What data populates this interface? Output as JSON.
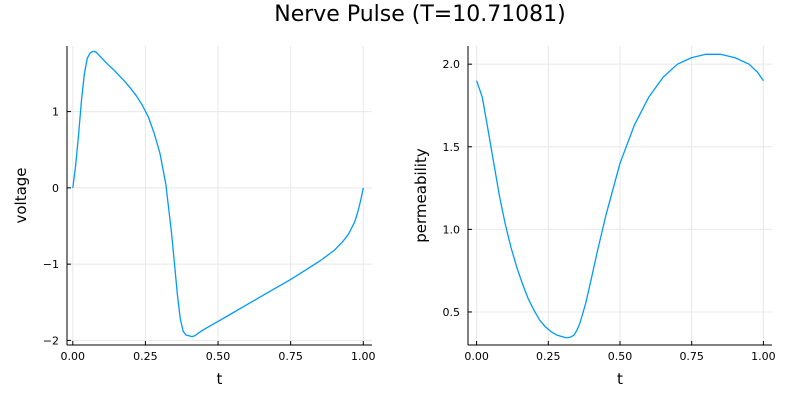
{
  "title": "Nerve Pulse (T=10.71081)",
  "chart_data": [
    {
      "type": "line",
      "xlabel": "t",
      "ylabel": "voltage",
      "xlim": [
        -0.02,
        1.03
      ],
      "ylim": [
        -2.06,
        1.86
      ],
      "xticks": [
        0.0,
        0.25,
        0.5,
        0.75,
        1.0
      ],
      "xtick_labels": [
        "0.00",
        "0.25",
        "0.50",
        "0.75",
        "1.00"
      ],
      "yticks": [
        -2,
        -1,
        0,
        1
      ],
      "ytick_labels": [
        "−2",
        "−1",
        "0",
        "1"
      ],
      "grid": true,
      "legend": "none",
      "series": [
        {
          "color": "#009AFA",
          "x": [
            0.0,
            0.01,
            0.02,
            0.03,
            0.04,
            0.05,
            0.06,
            0.07,
            0.08,
            0.09,
            0.1,
            0.12,
            0.14,
            0.16,
            0.18,
            0.2,
            0.22,
            0.24,
            0.26,
            0.28,
            0.3,
            0.32,
            0.34,
            0.35,
            0.36,
            0.37,
            0.38,
            0.39,
            0.4,
            0.41,
            0.42,
            0.43,
            0.45,
            0.5,
            0.55,
            0.6,
            0.65,
            0.7,
            0.75,
            0.8,
            0.85,
            0.9,
            0.93,
            0.95,
            0.97,
            0.98,
            0.99,
            1.0
          ],
          "y": [
            0.0,
            0.3,
            0.7,
            1.15,
            1.5,
            1.7,
            1.77,
            1.79,
            1.78,
            1.74,
            1.7,
            1.62,
            1.55,
            1.47,
            1.39,
            1.3,
            1.2,
            1.08,
            0.93,
            0.72,
            0.45,
            0.05,
            -0.6,
            -1.0,
            -1.4,
            -1.72,
            -1.88,
            -1.93,
            -1.94,
            -1.95,
            -1.94,
            -1.91,
            -1.86,
            -1.75,
            -1.64,
            -1.53,
            -1.42,
            -1.31,
            -1.2,
            -1.08,
            -0.96,
            -0.82,
            -0.7,
            -0.6,
            -0.45,
            -0.33,
            -0.18,
            0.0
          ]
        }
      ]
    },
    {
      "type": "line",
      "xlabel": "t",
      "ylabel": "permeability",
      "xlim": [
        -0.03,
        1.03
      ],
      "ylim": [
        0.3,
        2.11
      ],
      "xticks": [
        0.0,
        0.25,
        0.5,
        0.75,
        1.0
      ],
      "xtick_labels": [
        "0.00",
        "0.25",
        "0.50",
        "0.75",
        "1.00"
      ],
      "yticks": [
        0.5,
        1.0,
        1.5,
        2.0
      ],
      "ytick_labels": [
        "0.5",
        "1.0",
        "1.5",
        "2.0"
      ],
      "grid": true,
      "legend": "none",
      "series": [
        {
          "color": "#009AFA",
          "x": [
            0.0,
            0.02,
            0.04,
            0.06,
            0.08,
            0.1,
            0.12,
            0.14,
            0.16,
            0.18,
            0.2,
            0.22,
            0.24,
            0.26,
            0.28,
            0.3,
            0.31,
            0.32,
            0.33,
            0.34,
            0.35,
            0.36,
            0.38,
            0.4,
            0.42,
            0.45,
            0.5,
            0.55,
            0.6,
            0.65,
            0.7,
            0.75,
            0.8,
            0.85,
            0.9,
            0.95,
            0.98,
            1.0
          ],
          "y": [
            1.9,
            1.8,
            1.6,
            1.4,
            1.2,
            1.03,
            0.89,
            0.77,
            0.67,
            0.58,
            0.51,
            0.45,
            0.41,
            0.38,
            0.36,
            0.35,
            0.345,
            0.345,
            0.35,
            0.36,
            0.39,
            0.43,
            0.55,
            0.7,
            0.86,
            1.08,
            1.4,
            1.63,
            1.8,
            1.92,
            2.0,
            2.04,
            2.06,
            2.06,
            2.04,
            2.0,
            1.95,
            1.9
          ]
        }
      ]
    }
  ]
}
